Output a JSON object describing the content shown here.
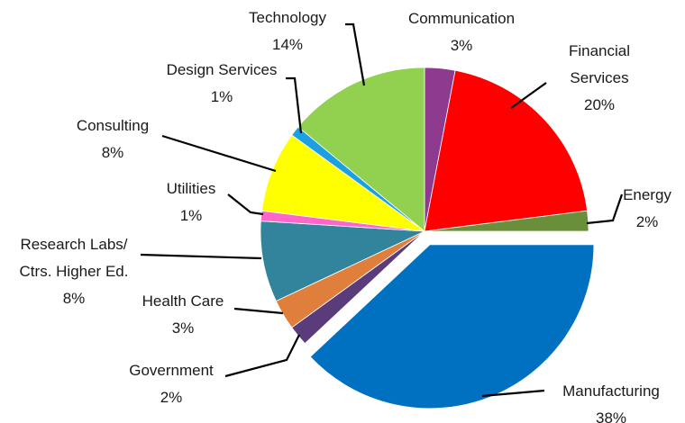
{
  "chart_data": {
    "type": "pie",
    "title": "",
    "start": "12 o'clock",
    "direction": "clockwise",
    "exploded_slice": "Manufacturing",
    "slices": [
      {
        "label": [
          "Communication"
        ],
        "pct_text": "3%",
        "value": 3,
        "color": "#8e3a8f"
      },
      {
        "label": [
          "Financial",
          "Services"
        ],
        "pct_text": "20%",
        "value": 20,
        "color": "#ff0000"
      },
      {
        "label": [
          "Energy"
        ],
        "pct_text": "2%",
        "value": 2,
        "color": "#6a8f3b"
      },
      {
        "label": [
          "Manufacturing"
        ],
        "pct_text": "38%",
        "value": 38,
        "color": "#0070c0"
      },
      {
        "label": [
          "Government"
        ],
        "pct_text": "2%",
        "value": 2,
        "color": "#5b3c7a"
      },
      {
        "label": [
          "Health Care"
        ],
        "pct_text": "3%",
        "value": 3,
        "color": "#e07f3c"
      },
      {
        "label": [
          "Research Labs/",
          "Ctrs. Higher Ed."
        ],
        "pct_text": "8%",
        "value": 8,
        "color": "#31849b"
      },
      {
        "label": [
          "Utilities"
        ],
        "pct_text": "1%",
        "value": 1,
        "color": "#ff66cc"
      },
      {
        "label": [
          "Consulting"
        ],
        "pct_text": "8%",
        "value": 8,
        "color": "#ffff00"
      },
      {
        "label": [
          "Design Services"
        ],
        "pct_text": "1%",
        "value": 1,
        "color": "#1ba1e2"
      },
      {
        "label": [
          "Technology"
        ],
        "pct_text": "14%",
        "value": 14,
        "color": "#92d050"
      }
    ]
  }
}
